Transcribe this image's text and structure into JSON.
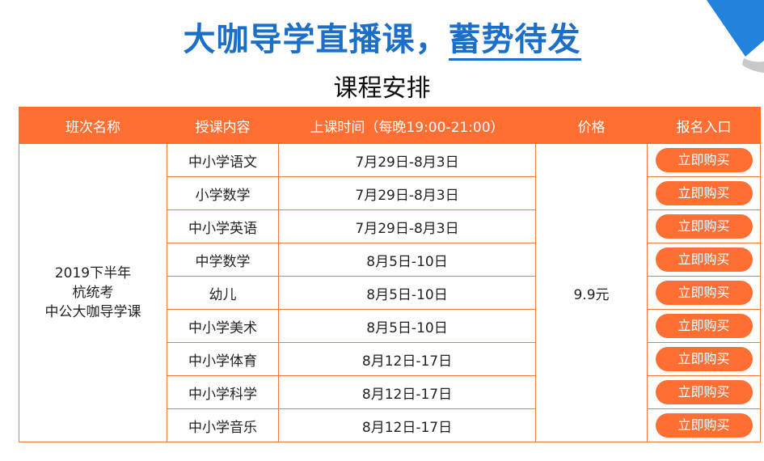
{
  "headline": {
    "part1": "大咖导学直播课，",
    "part2": "蓄势待发"
  },
  "subtitle": "课程安排",
  "colors": {
    "accent": "#ff6f33",
    "title": "#1b6fc8"
  },
  "table": {
    "headers": [
      "班次名称",
      "授课内容",
      "上课时间（每晚19:00-21:00）",
      "价格",
      "报名入口"
    ],
    "class_name": [
      "2019下半年",
      "杭统考",
      "中公大咖导学课"
    ],
    "price": "9.9元",
    "buy_label": "立即购买",
    "rows": [
      {
        "subject": "中小学语文",
        "date": "7月29日-8月3日"
      },
      {
        "subject": "小学数学",
        "date": "7月29日-8月3日"
      },
      {
        "subject": "中小学英语",
        "date": "7月29日-8月3日"
      },
      {
        "subject": "中学数学",
        "date": "8月5日-10日"
      },
      {
        "subject": "幼儿",
        "date": "8月5日-10日"
      },
      {
        "subject": "中小学美术",
        "date": "8月5日-10日"
      },
      {
        "subject": "中小学体育",
        "date": "8月12日-17日"
      },
      {
        "subject": "中小学科学",
        "date": "8月12日-17日"
      },
      {
        "subject": "中小学音乐",
        "date": "8月12日-17日"
      }
    ]
  }
}
